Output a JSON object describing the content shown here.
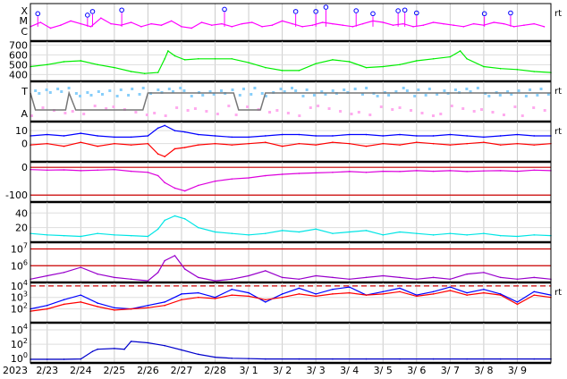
{
  "chart_data": {
    "type": "line",
    "year": "2023",
    "x_labels": [
      "2/23",
      "2/24",
      "2/25",
      "2/26",
      "2/27",
      "2/28",
      "3/ 1",
      "3/ 2",
      "3/ 3",
      "3/ 4",
      "3/ 5",
      "3/ 6",
      "3/ 7",
      "3/ 8",
      "3/ 9"
    ],
    "x_range_days": [
      0,
      15.5
    ],
    "grid": true,
    "right_marks": [
      "rt",
      "rt",
      "rt",
      "rt"
    ],
    "panels": [
      {
        "id": "flare-class",
        "type": "line",
        "color": "#ff00ff",
        "y_tick_labels": [
          "X",
          "M",
          "C"
        ],
        "series": [
          {
            "x": [
              0,
              0.3,
              0.6,
              0.9,
              1.2,
              1.5,
              1.8,
              2.1,
              2.4,
              2.7,
              3.0,
              3.3,
              3.6,
              3.9,
              4.2,
              4.5,
              4.8,
              5.1,
              5.4,
              5.7,
              6.0,
              6.3,
              6.6,
              6.9,
              7.2,
              7.5,
              7.8,
              8.1,
              8.4,
              8.7,
              9.0,
              9.3,
              9.6,
              9.9,
              10.2,
              10.5,
              10.8,
              11.1,
              11.4,
              11.7,
              12.0,
              12.3,
              12.6,
              12.9,
              13.2,
              13.5,
              13.8,
              14.1,
              14.4,
              14.7,
              15.0,
              15.3
            ],
            "y": [
              1.0,
              1.3,
              0.9,
              1.1,
              1.4,
              1.2,
              1.0,
              1.6,
              1.2,
              1.1,
              1.3,
              1.0,
              1.2,
              1.1,
              1.4,
              1.0,
              0.9,
              1.3,
              1.1,
              1.2,
              1.0,
              1.2,
              1.3,
              1.0,
              1.1,
              1.4,
              1.2,
              1.0,
              1.1,
              1.3,
              1.2,
              1.1,
              1.0,
              1.2,
              1.4,
              1.3,
              1.1,
              1.2,
              1.0,
              1.1,
              1.3,
              1.2,
              1.1,
              1.0,
              1.2,
              1.1,
              1.3,
              1.2,
              1.0,
              1.1,
              1.2,
              1.0
            ]
          }
        ],
        "events": [
          {
            "x": 0.22,
            "level": 1.9
          },
          {
            "x": 1.7,
            "level": 1.8
          },
          {
            "x": 1.85,
            "level": 2.05
          },
          {
            "x": 2.72,
            "level": 2.15
          },
          {
            "x": 5.78,
            "level": 2.2
          },
          {
            "x": 7.9,
            "level": 2.05
          },
          {
            "x": 8.5,
            "level": 2.05
          },
          {
            "x": 8.8,
            "level": 2.35
          },
          {
            "x": 9.7,
            "level": 2.1
          },
          {
            "x": 10.2,
            "level": 1.9
          },
          {
            "x": 10.95,
            "level": 2.1
          },
          {
            "x": 11.15,
            "level": 2.15
          },
          {
            "x": 11.5,
            "level": 1.95
          },
          {
            "x": 13.52,
            "level": 1.9
          },
          {
            "x": 14.3,
            "level": 1.95
          }
        ]
      },
      {
        "id": "solar-wind-speed",
        "type": "line",
        "color": "#00ee00",
        "y_ticks": [
          400,
          500,
          600,
          700
        ],
        "ylim": [
          330,
          740
        ],
        "series": [
          {
            "x": [
              0,
              0.5,
              1.0,
              1.5,
              2.0,
              2.5,
              3.0,
              3.4,
              3.8,
              4.0,
              4.1,
              4.3,
              4.6,
              5.0,
              5.5,
              6.0,
              6.5,
              7.0,
              7.5,
              8.0,
              8.5,
              9.0,
              9.5,
              10.0,
              10.5,
              11.0,
              11.5,
              12.0,
              12.5,
              12.8,
              13.0,
              13.5,
              14.0,
              14.5,
              15.0,
              15.5
            ],
            "y": [
              480,
              500,
              530,
              540,
              500,
              470,
              430,
              410,
              420,
              560,
              640,
              590,
              550,
              560,
              560,
              560,
              520,
              470,
              440,
              440,
              510,
              550,
              530,
              470,
              480,
              500,
              540,
              560,
              580,
              640,
              560,
              480,
              460,
              450,
              430,
              420
            ]
          }
        ]
      },
      {
        "id": "imf-phi",
        "type": "scatter",
        "y_tick_labels": [
          "T",
          "A"
        ],
        "colors": {
          "toward": "#87cefa",
          "away": "#ffaaee",
          "sector": "#777777"
        },
        "sector_line": {
          "x": [
            0,
            0.15,
            1.05,
            1.15,
            1.35,
            3.35,
            3.5,
            6.05,
            6.2,
            6.85,
            7.0,
            15.5
          ],
          "y": [
            1,
            0,
            0,
            1,
            0,
            0,
            1,
            1,
            0,
            0,
            1,
            1
          ]
        }
      },
      {
        "id": "imf-bt-bz",
        "type": "line",
        "y_ticks": [
          0,
          10
        ],
        "ylim": [
          -14,
          17
        ],
        "series": [
          {
            "name": "",
            "color": "#0000ff",
            "x": [
              0,
              0.5,
              1.0,
              1.5,
              2.0,
              2.5,
              3.0,
              3.5,
              3.8,
              4.0,
              4.3,
              4.6,
              5.0,
              5.5,
              6.0,
              6.5,
              7.0,
              7.5,
              8.0,
              8.5,
              9.0,
              9.5,
              10.0,
              10.5,
              11.0,
              11.5,
              12.0,
              12.5,
              13.0,
              13.5,
              14.0,
              14.5,
              15.0,
              15.5
            ],
            "y": [
              6,
              7,
              6,
              8,
              6,
              5,
              5,
              6,
              12,
              14,
              10,
              9,
              7,
              6,
              5,
              5,
              6,
              7,
              7,
              6,
              6,
              7,
              7,
              6,
              7,
              6,
              6,
              7,
              6,
              5,
              6,
              7,
              6,
              6
            ]
          },
          {
            "name": "",
            "color": "#ff0000",
            "x": [
              0,
              0.5,
              1.0,
              1.5,
              2.0,
              2.5,
              3.0,
              3.5,
              3.8,
              4.0,
              4.3,
              4.6,
              5.0,
              5.5,
              6.0,
              6.5,
              7.0,
              7.5,
              8.0,
              8.5,
              9.0,
              9.5,
              10.0,
              10.5,
              11.0,
              11.5,
              12.0,
              12.5,
              13.0,
              13.5,
              14.0,
              14.5,
              15.0,
              15.5
            ],
            "y": [
              -1,
              0,
              -2,
              1,
              -2,
              0,
              -1,
              0,
              -8,
              -10,
              -4,
              -3,
              -1,
              0,
              -1,
              0,
              1,
              -2,
              0,
              -1,
              1,
              0,
              -2,
              0,
              -1,
              1,
              0,
              -1,
              0,
              1,
              -1,
              0,
              -1,
              0
            ]
          }
        ]
      },
      {
        "id": "ssn-like",
        "type": "line",
        "color": "#dd00dd",
        "y_ticks": [
          -100,
          0
        ],
        "ylim": [
          -125,
          20
        ],
        "reference_lines": [
          {
            "y": 0,
            "color": "#cc0000"
          },
          {
            "y": -100,
            "color": "#cc0000"
          }
        ],
        "series": [
          {
            "x": [
              0,
              0.5,
              1.0,
              1.5,
              2.0,
              2.5,
              3.0,
              3.5,
              3.8,
              4.0,
              4.3,
              4.6,
              5.0,
              5.5,
              6.0,
              6.5,
              7.0,
              7.5,
              8.0,
              8.5,
              9.0,
              9.5,
              10.0,
              10.5,
              11.0,
              11.5,
              12.0,
              12.5,
              13.0,
              13.5,
              14.0,
              14.5,
              15.0,
              15.5
            ],
            "y": [
              -8,
              -10,
              -9,
              -12,
              -10,
              -8,
              -14,
              -18,
              -30,
              -55,
              -75,
              -85,
              -65,
              -50,
              -42,
              -38,
              -30,
              -25,
              -22,
              -20,
              -18,
              -15,
              -18,
              -14,
              -15,
              -12,
              -14,
              -12,
              -15,
              -13,
              -12,
              -14,
              -10,
              -12
            ]
          }
        ]
      },
      {
        "id": "kp-like",
        "type": "line",
        "color": "#00e5e5",
        "y_ticks": [
          20,
          40
        ],
        "ylim": [
          0,
          55
        ],
        "series": [
          {
            "x": [
              0,
              0.5,
              1.0,
              1.5,
              2.0,
              2.5,
              3.0,
              3.5,
              3.8,
              4.0,
              4.3,
              4.6,
              5.0,
              5.5,
              6.0,
              6.5,
              7.0,
              7.5,
              8.0,
              8.5,
              9.0,
              9.5,
              10.0,
              10.5,
              11.0,
              11.5,
              12.0,
              12.5,
              13.0,
              13.5,
              14.0,
              14.5,
              15.0,
              15.5
            ],
            "y": [
              12,
              10,
              9,
              8,
              12,
              10,
              9,
              8,
              18,
              30,
              36,
              32,
              20,
              14,
              12,
              10,
              12,
              16,
              14,
              18,
              12,
              14,
              16,
              10,
              14,
              12,
              10,
              12,
              10,
              12,
              9,
              8,
              10,
              9
            ]
          }
        ]
      },
      {
        "id": "particle-flux",
        "type": "line",
        "color": "#9900cc",
        "y_tick_labels": [
          "10^6",
          "10^7"
        ],
        "ylog": true,
        "ylim_exp": [
          5,
          7.4
        ],
        "reference_lines": [
          {
            "exp": 6,
            "color": "#cc0000"
          },
          {
            "exp": 7,
            "color": "#cc0000"
          }
        ],
        "series": [
          {
            "x": [
              0,
              0.5,
              1.0,
              1.5,
              2.0,
              2.5,
              3.0,
              3.5,
              3.8,
              4.0,
              4.3,
              4.6,
              5.0,
              5.5,
              6.0,
              6.5,
              7.0,
              7.5,
              8.0,
              8.5,
              9.0,
              9.5,
              10.0,
              10.5,
              11.0,
              11.5,
              12.0,
              12.5,
              13.0,
              13.5,
              14.0,
              14.5,
              15.0,
              15.5
            ],
            "y": [
              5.2,
              5.4,
              5.6,
              5.9,
              5.5,
              5.3,
              5.2,
              5.1,
              5.6,
              6.3,
              6.6,
              5.8,
              5.3,
              5.1,
              5.2,
              5.4,
              5.7,
              5.3,
              5.2,
              5.4,
              5.3,
              5.2,
              5.3,
              5.4,
              5.3,
              5.2,
              5.3,
              5.2,
              5.5,
              5.6,
              5.3,
              5.2,
              5.3,
              5.2
            ]
          }
        ]
      },
      {
        "id": "electron-flux",
        "type": "line",
        "y_tick_labels": [
          "10^2",
          "10^3",
          "10^4"
        ],
        "ylog": true,
        "ylim_exp": [
          0.8,
          4.3
        ],
        "reference_lines": [
          {
            "exp": 4,
            "color": "#cc0000",
            "dashed": true
          }
        ],
        "series": [
          {
            "name": "",
            "color": "#0000ff",
            "x": [
              0,
              0.5,
              1.0,
              1.5,
              2.0,
              2.5,
              3.0,
              3.5,
              4.0,
              4.5,
              5.0,
              5.5,
              6.0,
              6.5,
              7.0,
              7.5,
              8.0,
              8.5,
              9.0,
              9.5,
              10.0,
              10.5,
              11.0,
              11.5,
              12.0,
              12.5,
              13.0,
              13.5,
              14.0,
              14.5,
              15.0,
              15.5
            ],
            "y": [
              2.0,
              2.3,
              2.8,
              3.2,
              2.5,
              2.1,
              2.0,
              2.3,
              2.6,
              3.3,
              3.4,
              3.0,
              3.7,
              3.4,
              2.6,
              3.3,
              3.8,
              3.3,
              3.7,
              3.9,
              3.2,
              3.5,
              3.8,
              3.2,
              3.5,
              3.9,
              3.4,
              3.7,
              3.3,
              2.6,
              3.5,
              3.2
            ]
          },
          {
            "name": "",
            "color": "#ff0000",
            "x": [
              0,
              0.5,
              1.0,
              1.5,
              2.0,
              2.5,
              3.0,
              3.5,
              4.0,
              4.5,
              5.0,
              5.5,
              6.0,
              6.5,
              7.0,
              7.5,
              8.0,
              8.5,
              9.0,
              9.5,
              10.0,
              10.5,
              11.0,
              11.5,
              12.0,
              12.5,
              13.0,
              13.5,
              14.0,
              14.5,
              15.0,
              15.5
            ],
            "y": [
              1.8,
              2.0,
              2.4,
              2.6,
              2.2,
              1.9,
              2.0,
              2.1,
              2.3,
              2.8,
              3.0,
              2.9,
              3.2,
              3.1,
              2.8,
              3.0,
              3.3,
              3.1,
              3.3,
              3.4,
              3.2,
              3.3,
              3.5,
              3.1,
              3.3,
              3.6,
              3.2,
              3.4,
              3.2,
              2.4,
              3.2,
              3.0
            ]
          }
        ]
      },
      {
        "id": "proton-flux",
        "type": "line",
        "color": "#0000cc",
        "y_tick_labels": [
          "10^0",
          "10^2",
          "10^4"
        ],
        "ylog": true,
        "ylim_exp": [
          -0.6,
          5
        ],
        "series": [
          {
            "x": [
              0,
              0.5,
              1.0,
              1.5,
              1.85,
              2.0,
              2.5,
              2.8,
              3.0,
              3.5,
              4.0,
              4.5,
              5.0,
              5.5,
              6.0,
              6.5,
              7.0,
              8.0,
              9.0,
              10.0,
              11.0,
              12.0,
              13.0,
              14.0,
              15.0,
              15.5
            ],
            "y": [
              -0.1,
              -0.1,
              -0.1,
              -0.05,
              1.0,
              1.3,
              1.4,
              1.3,
              2.4,
              2.2,
              1.8,
              1.2,
              0.6,
              0.2,
              0.05,
              0.0,
              -0.05,
              -0.05,
              -0.05,
              -0.05,
              -0.05,
              -0.05,
              -0.05,
              -0.05,
              -0.05,
              -0.05
            ]
          }
        ]
      }
    ]
  }
}
